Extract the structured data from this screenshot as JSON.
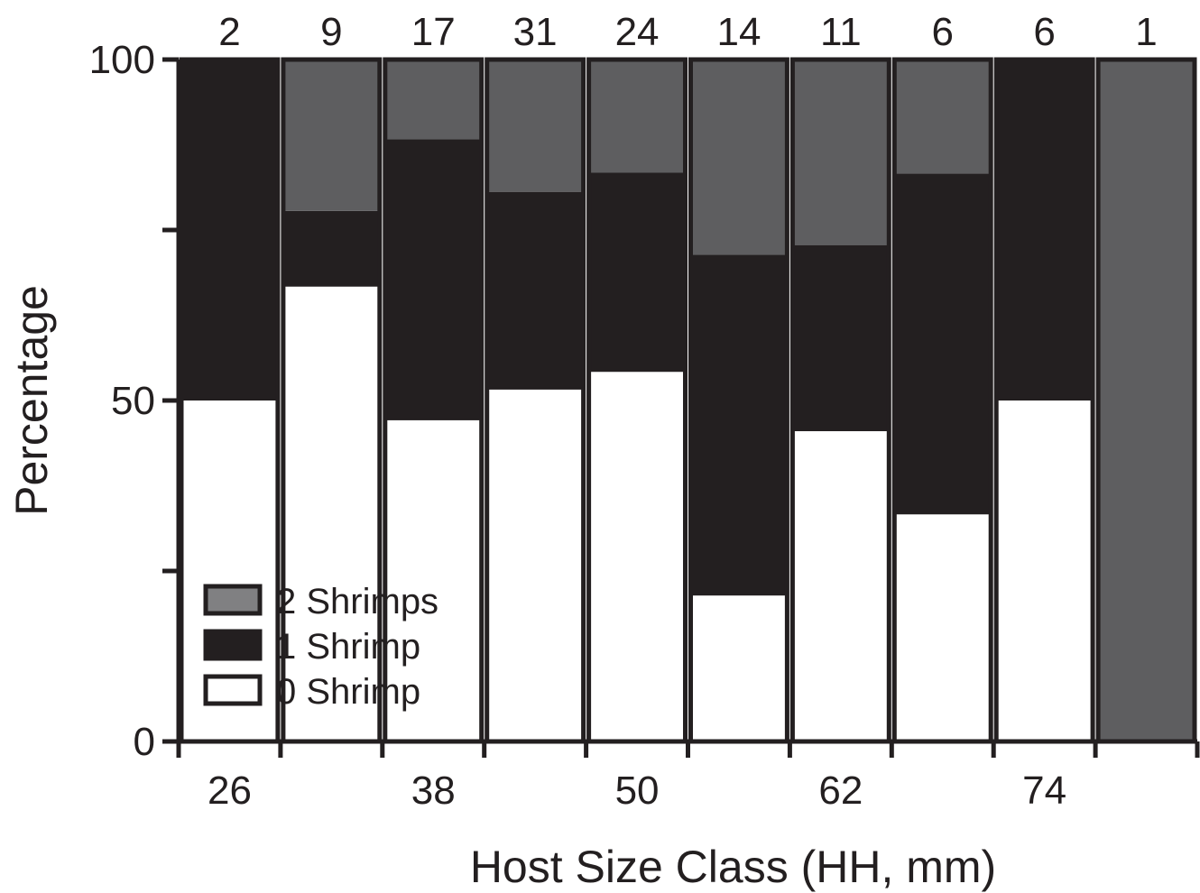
{
  "chart_data": {
    "type": "bar",
    "stacked": true,
    "percent": true,
    "xlabel": "Host Size Class (HH, mm)",
    "ylabel": "Percentage",
    "ylim": [
      0,
      100
    ],
    "y_ticks": [
      "0",
      "50",
      "100"
    ],
    "x_tick_labels": [
      "26",
      "",
      "38",
      "",
      "50",
      "",
      "62",
      "",
      "74",
      ""
    ],
    "sample_sizes": [
      "2",
      "9",
      "17",
      "31",
      "24",
      "14",
      "11",
      "6",
      "6",
      "1"
    ],
    "series": [
      {
        "name": "0 Shrimp",
        "color": "#ffffff",
        "values": [
          50,
          66.7,
          47.1,
          51.6,
          54.2,
          21.4,
          45.5,
          33.3,
          50,
          0
        ]
      },
      {
        "name": "1 Shrimp",
        "color": "#231f20",
        "values": [
          50,
          11.1,
          41.2,
          29.0,
          29.2,
          50.0,
          27.3,
          50.0,
          50,
          0
        ]
      },
      {
        "name": "2 Shrimps",
        "color": "#5e5e60",
        "values": [
          0,
          22.2,
          11.7,
          19.4,
          16.6,
          28.6,
          27.2,
          16.7,
          0,
          100
        ]
      }
    ],
    "legend": {
      "placement": "bottom-left",
      "items": [
        "2 Shrimps",
        "1 Shrimp",
        "0 Shrimp"
      ],
      "swatch_colors": [
        "#808082",
        "#231f20",
        "#ffffff"
      ]
    },
    "grid": false
  }
}
